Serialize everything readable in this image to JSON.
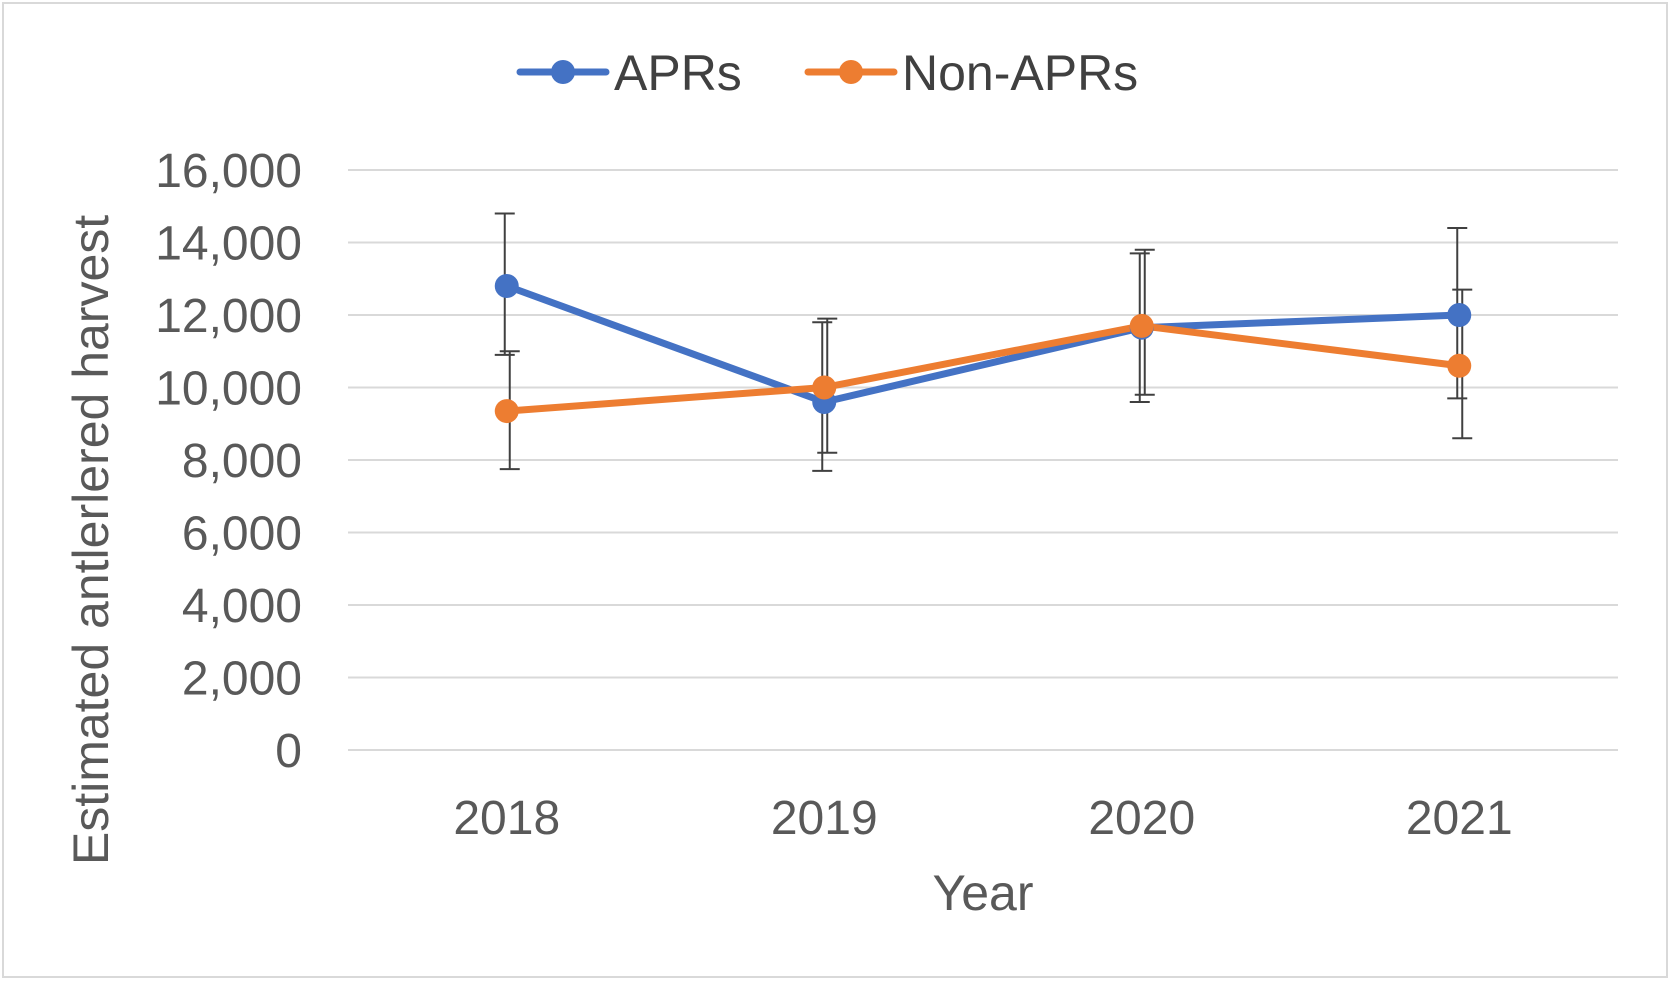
{
  "chart_data": {
    "type": "line",
    "categories": [
      "2018",
      "2019",
      "2020",
      "2021"
    ],
    "series": [
      {
        "name": "APRs",
        "color": "#4472C4",
        "values": [
          12800,
          9600,
          11650,
          12000
        ],
        "error_low": [
          10900,
          7700,
          9600,
          9700
        ],
        "error_high": [
          14800,
          11800,
          13700,
          14400
        ]
      },
      {
        "name": "Non-APRs",
        "color": "#ED7D31",
        "values": [
          9350,
          10000,
          11700,
          10600
        ],
        "error_low": [
          7750,
          8200,
          9800,
          8600
        ],
        "error_high": [
          11000,
          11900,
          13800,
          12700
        ]
      }
    ],
    "title": "",
    "xlabel": "Year",
    "ylabel": "Estimated antlerlered harvest",
    "ylim": [
      0,
      16000
    ],
    "yticks": [
      {
        "value": 0,
        "label": "0"
      },
      {
        "value": 2000,
        "label": "2,000"
      },
      {
        "value": 4000,
        "label": "4,000"
      },
      {
        "value": 6000,
        "label": "6,000"
      },
      {
        "value": 8000,
        "label": "8,000"
      },
      {
        "value": 10000,
        "label": "10,000"
      },
      {
        "value": 12000,
        "label": "12,000"
      },
      {
        "value": 14000,
        "label": "14,000"
      },
      {
        "value": 16000,
        "label": "16,000"
      }
    ],
    "grid": true,
    "legend_position": "top-center",
    "colors": {
      "grid": "#d9d9d9",
      "error_bar": "#404040",
      "text": "#595959"
    }
  }
}
